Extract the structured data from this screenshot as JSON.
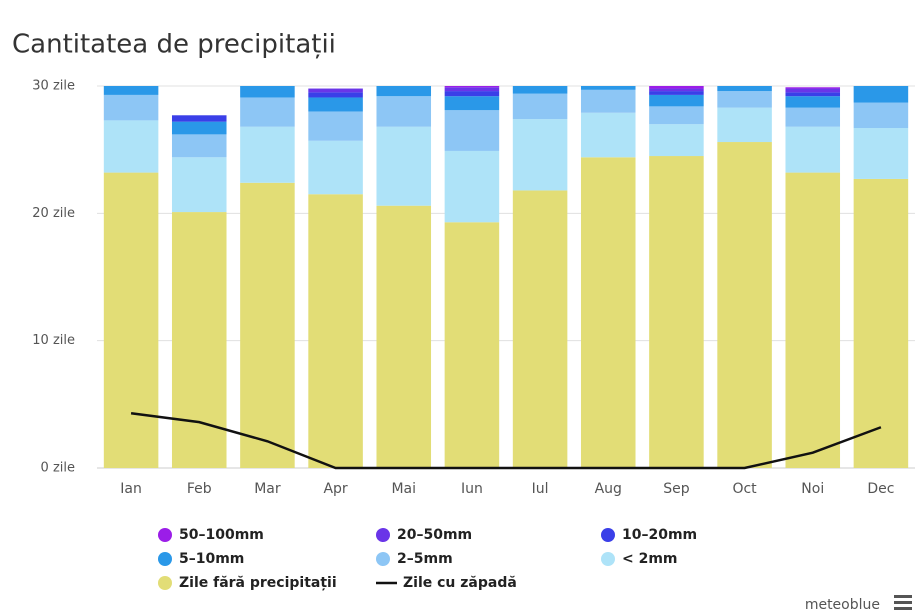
{
  "chart_data": {
    "type": "bar",
    "stacked": true,
    "title": "Cantitatea de precipitații",
    "categories": [
      "Ian",
      "Feb",
      "Mar",
      "Apr",
      "Mai",
      "Iun",
      "Iul",
      "Aug",
      "Sep",
      "Oct",
      "Noi",
      "Dec"
    ],
    "ylim": [
      0,
      30
    ],
    "yticks": [
      {
        "value": 0,
        "label": "0 zile"
      },
      {
        "value": 10,
        "label": "10 zile"
      },
      {
        "value": 20,
        "label": "20 zile"
      },
      {
        "value": 30,
        "label": "30 zile"
      }
    ],
    "grid": true,
    "legend": "bottom",
    "series": [
      {
        "name": "Zile fără precipitații",
        "color": "#e2dd76",
        "values": [
          23.2,
          20.1,
          22.4,
          21.5,
          20.6,
          19.3,
          21.8,
          24.4,
          24.5,
          25.6,
          23.2,
          22.7
        ]
      },
      {
        "name": "< 2mm",
        "color": "#aee3f8",
        "values": [
          4.1,
          4.3,
          4.4,
          4.2,
          6.2,
          5.6,
          5.6,
          3.5,
          2.5,
          2.7,
          3.6,
          4.0
        ]
      },
      {
        "name": "2–5mm",
        "color": "#8dc6f5",
        "values": [
          2.0,
          1.8,
          2.3,
          2.3,
          2.4,
          3.2,
          2.0,
          1.8,
          1.4,
          1.3,
          1.5,
          2.0
        ]
      },
      {
        "name": "5–10mm",
        "color": "#2a98e8",
        "values": [
          0.7,
          1.0,
          0.9,
          1.1,
          0.8,
          1.1,
          0.6,
          0.3,
          0.9,
          0.4,
          0.9,
          1.3
        ]
      },
      {
        "name": "10–20mm",
        "color": "#3a3fe8",
        "values": [
          0,
          0.5,
          0,
          0.4,
          0,
          0.4,
          0,
          0,
          0.3,
          0,
          0.3,
          0
        ]
      },
      {
        "name": "20–50mm",
        "color": "#6a35e8",
        "values": [
          0,
          0,
          0,
          0.3,
          0,
          0.3,
          0,
          0,
          0.2,
          0,
          0.3,
          0
        ]
      },
      {
        "name": "50–100mm",
        "color": "#9b1de8",
        "values": [
          0,
          0,
          0,
          0,
          0,
          0.1,
          0,
          0,
          0.2,
          0,
          0.1,
          0
        ]
      },
      {
        "name": "Zile cu zăpadă",
        "color": "#111111",
        "type": "line",
        "values": [
          4.3,
          3.6,
          2.1,
          0,
          0,
          0,
          0,
          0,
          0,
          0,
          1.2,
          3.2
        ]
      }
    ],
    "source": "meteoblue"
  }
}
